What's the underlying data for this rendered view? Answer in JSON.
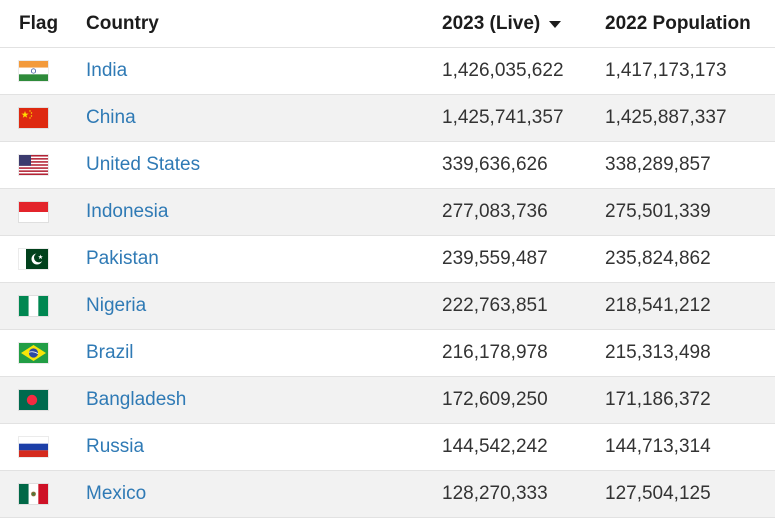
{
  "header": {
    "flag": "Flag",
    "country": "Country",
    "live": "2023 (Live)",
    "pop2022": "2022 Population",
    "sort_icon": "caret-down-icon"
  },
  "colors": {
    "link": "#2f7ab5",
    "stripe": "#f2f2f2",
    "divider": "#e2e2e2"
  },
  "rows": [
    {
      "flag": "india-flag-icon",
      "country": "India",
      "live": "1,426,035,622",
      "pop2022": "1,417,173,173"
    },
    {
      "flag": "china-flag-icon",
      "country": "China",
      "live": "1,425,741,357",
      "pop2022": "1,425,887,337"
    },
    {
      "flag": "united-states-flag-icon",
      "country": "United States",
      "live": "339,636,626",
      "pop2022": "338,289,857"
    },
    {
      "flag": "indonesia-flag-icon",
      "country": "Indonesia",
      "live": "277,083,736",
      "pop2022": "275,501,339"
    },
    {
      "flag": "pakistan-flag-icon",
      "country": "Pakistan",
      "live": "239,559,487",
      "pop2022": "235,824,862"
    },
    {
      "flag": "nigeria-flag-icon",
      "country": "Nigeria",
      "live": "222,763,851",
      "pop2022": "218,541,212"
    },
    {
      "flag": "brazil-flag-icon",
      "country": "Brazil",
      "live": "216,178,978",
      "pop2022": "215,313,498"
    },
    {
      "flag": "bangladesh-flag-icon",
      "country": "Bangladesh",
      "live": "172,609,250",
      "pop2022": "171,186,372"
    },
    {
      "flag": "russia-flag-icon",
      "country": "Russia",
      "live": "144,542,242",
      "pop2022": "144,713,314"
    },
    {
      "flag": "mexico-flag-icon",
      "country": "Mexico",
      "live": "128,270,333",
      "pop2022": "127,504,125"
    }
  ]
}
